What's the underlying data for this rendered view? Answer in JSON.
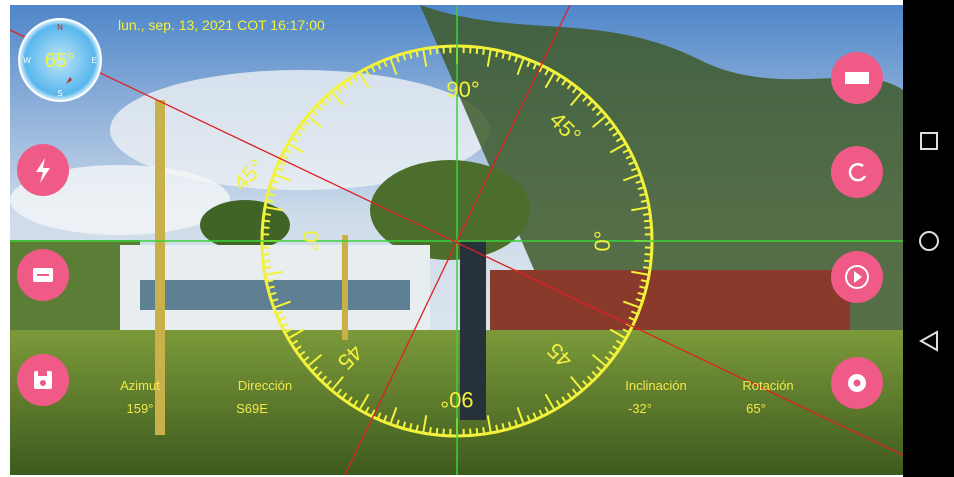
{
  "status": {
    "datetime": "lun., sep. 13, 2021 COT 16:17:00"
  },
  "compass": {
    "heading": "65°",
    "north": "N",
    "east": "E",
    "south": "S",
    "west": "W"
  },
  "dial": {
    "top": "90°",
    "upper_left": "45°",
    "upper_right": "45°",
    "left": "0°",
    "right": "0°",
    "lower_left": "45",
    "lower_right": "45",
    "bottom": "90°"
  },
  "readings": [
    {
      "label": "Azimut",
      "value": "159°"
    },
    {
      "label": "Dirección",
      "value": "S69E"
    },
    {
      "label": "Inclinación",
      "value": "-32°"
    },
    {
      "label": "Rotación",
      "value": "65°"
    }
  ]
}
